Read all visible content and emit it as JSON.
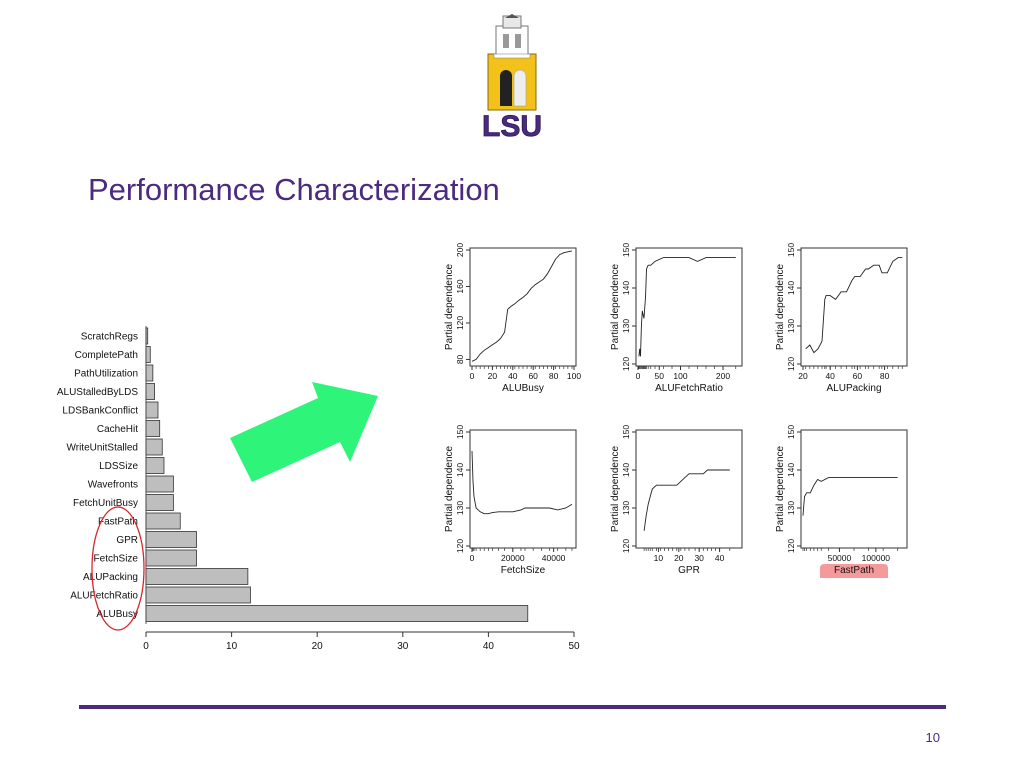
{
  "slide": {
    "title": "Performance Characterization",
    "page_number": "10",
    "logo_text": "LSU",
    "colors": {
      "title": "#4b2a7f",
      "rule": "#4b2a7f",
      "bar_fill": "#bebebe",
      "arrow": "#2ef57a",
      "highlight_circle": "#d9262b",
      "highlight_box": "#f59a9a"
    }
  },
  "chart_data": [
    {
      "type": "bar",
      "orientation": "horizontal",
      "categories": [
        "ScratchRegs",
        "CompletePath",
        "PathUtilization",
        "ALUStalledByLDS",
        "LDSBankConflict",
        "CacheHit",
        "WriteUnitStalled",
        "LDSSize",
        "Wavefronts",
        "FetchUnitBusy",
        "FastPath",
        "GPR",
        "FetchSize",
        "ALUPacking",
        "ALUFetchRatio",
        "ALUBusy"
      ],
      "values": [
        0.2,
        0.5,
        0.8,
        1.0,
        1.4,
        1.6,
        1.9,
        2.1,
        3.2,
        3.2,
        4.0,
        5.9,
        5.9,
        11.9,
        12.2,
        44.6
      ],
      "xlim": [
        0,
        50
      ],
      "xticks": [
        "0",
        "10",
        "20",
        "30",
        "40",
        "50"
      ],
      "highlighted": [
        "FastPath",
        "GPR",
        "FetchSize",
        "ALUPacking",
        "ALUFetchRatio",
        "ALUBusy"
      ]
    },
    {
      "type": "line",
      "xlabel": "ALUBusy",
      "ylabel": "Partial dependence",
      "xlim": [
        0,
        100
      ],
      "ylim": [
        75,
        200
      ],
      "xticks": [
        0,
        20,
        40,
        60,
        80,
        100
      ],
      "yticks": [
        80,
        120,
        160,
        200
      ],
      "x": [
        0,
        4,
        8,
        12,
        16,
        20,
        24,
        28,
        32,
        35,
        38,
        42,
        46,
        50,
        54,
        58,
        62,
        66,
        70,
        74,
        78,
        82,
        86,
        90,
        94,
        98
      ],
      "y": [
        78,
        80,
        86,
        90,
        93,
        96,
        99,
        103,
        110,
        135,
        138,
        141,
        145,
        148,
        152,
        158,
        162,
        165,
        168,
        174,
        182,
        190,
        195,
        197,
        198,
        199
      ]
    },
    {
      "type": "line",
      "xlabel": "ALUFetchRatio",
      "ylabel": "Partial dependence",
      "xlim": [
        0,
        240
      ],
      "ylim": [
        120,
        150
      ],
      "xticks": [
        0,
        50,
        100,
        200
      ],
      "yticks": [
        120,
        130,
        140,
        150
      ],
      "x": [
        2,
        4,
        6,
        8,
        10,
        12,
        14,
        16,
        18,
        20,
        24,
        30,
        40,
        60,
        80,
        100,
        120,
        140,
        160,
        180,
        200,
        230
      ],
      "y": [
        122,
        124,
        122,
        130,
        134,
        133,
        132,
        135,
        138,
        145,
        146,
        146,
        147,
        148,
        148,
        148,
        148,
        147,
        148,
        148,
        148,
        148
      ]
    },
    {
      "type": "line",
      "xlabel": "ALUPacking",
      "ylabel": "Partial dependence",
      "xlim": [
        20,
        95
      ],
      "ylim": [
        120,
        150
      ],
      "xticks": [
        20,
        40,
        60,
        80
      ],
      "yticks": [
        120,
        130,
        140,
        150
      ],
      "x": [
        22,
        25,
        28,
        31,
        34,
        36,
        37,
        40,
        44,
        48,
        52,
        56,
        58,
        62,
        66,
        68,
        72,
        76,
        78,
        82,
        86,
        90,
        93
      ],
      "y": [
        124,
        125,
        123,
        124,
        126,
        137,
        138,
        138,
        137,
        139,
        139,
        142,
        143,
        143,
        145,
        145,
        146,
        146,
        144,
        144,
        147,
        148,
        148
      ]
    },
    {
      "type": "line",
      "xlabel": "FetchSize",
      "ylabel": "Partial dependence",
      "xlim": [
        0,
        50000
      ],
      "ylim": [
        120,
        150
      ],
      "xticks": [
        0,
        20000,
        40000
      ],
      "yticks": [
        120,
        130,
        140,
        150
      ],
      "x": [
        0,
        500,
        1000,
        2000,
        4000,
        6000,
        8000,
        10000,
        13000,
        16000,
        20000,
        24000,
        26000,
        30000,
        34000,
        38000,
        42000,
        46000,
        49000
      ],
      "y": [
        145,
        137,
        133,
        130,
        129,
        128.5,
        128.5,
        128.8,
        129,
        129,
        129,
        129.5,
        130,
        130,
        130,
        130,
        129.5,
        130,
        131
      ]
    },
    {
      "type": "line",
      "xlabel": "GPR",
      "ylabel": "Partial dependence",
      "xlim": [
        0,
        50
      ],
      "ylim": [
        120,
        150
      ],
      "xticks": [
        10,
        20,
        30,
        40
      ],
      "yticks": [
        120,
        130,
        140,
        150
      ],
      "x": [
        3,
        4,
        5,
        6,
        7,
        9,
        11,
        13,
        15,
        17,
        19,
        21,
        23,
        25,
        28,
        30,
        32,
        34,
        36,
        38,
        40,
        45
      ],
      "y": [
        124,
        128,
        131,
        133,
        135,
        136,
        136,
        136,
        136,
        136,
        136,
        137,
        138,
        139,
        139,
        139,
        139,
        140,
        140,
        140,
        140,
        140
      ]
    },
    {
      "type": "line",
      "xlabel": "FastPath",
      "ylabel": "Partial dependence",
      "xlim": [
        0,
        140000
      ],
      "ylim": [
        120,
        150
      ],
      "xticks": [
        50000,
        100000
      ],
      "yticks": [
        120,
        130,
        140,
        150
      ],
      "x": [
        0,
        2000,
        5000,
        10000,
        15000,
        20000,
        25000,
        35000,
        50000,
        70000,
        90000,
        110000,
        130000
      ],
      "y": [
        128,
        133,
        134,
        134,
        136,
        137.5,
        137,
        138,
        138,
        138,
        138,
        138,
        138
      ]
    }
  ]
}
